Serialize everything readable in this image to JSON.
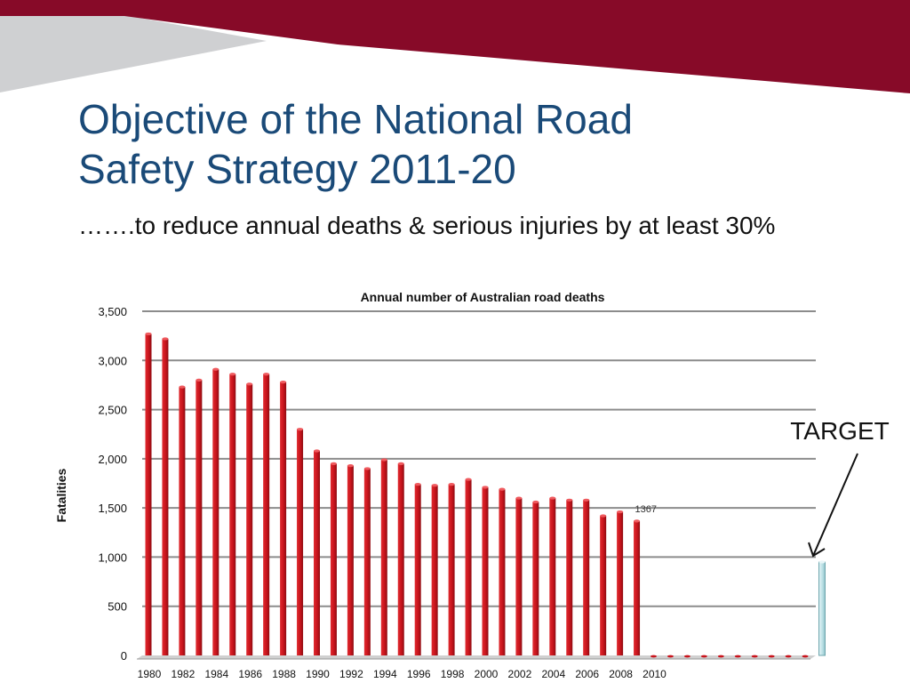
{
  "slide": {
    "title_line1": "Objective of the National Road",
    "title_line2": "Safety Strategy 2011-20",
    "subtitle": "…….to reduce annual deaths & serious injuries by at least 30%"
  },
  "colors": {
    "banner": "#870a28",
    "banner_gray": "#cfd0d2",
    "title": "#1a4a78",
    "bar": "#c8141c",
    "target_bar": "#b9dfe4"
  },
  "chart_data": {
    "type": "bar",
    "title": "Annual number of Australian road deaths",
    "ylabel": "Fatalities",
    "xlabel": "",
    "ylim": [
      0,
      3500
    ],
    "yticks": [
      0,
      500,
      1000,
      1500,
      2000,
      2500,
      3000,
      3500
    ],
    "ytick_labels": [
      "0",
      "500",
      "1,000",
      "1,500",
      "2,000",
      "2,500",
      "3,000",
      "3,500"
    ],
    "categories": [
      "1980",
      "1981",
      "1982",
      "1983",
      "1984",
      "1985",
      "1986",
      "1987",
      "1988",
      "1989",
      "1990",
      "1991",
      "1992",
      "1993",
      "1994",
      "1995",
      "1996",
      "1997",
      "1998",
      "1999",
      "2000",
      "2001",
      "2002",
      "2003",
      "2004",
      "2005",
      "2006",
      "2007",
      "2008",
      "2009",
      "2010",
      "2011",
      "2012",
      "2013",
      "2014",
      "2015",
      "2016",
      "2017",
      "2018",
      "2019",
      "2020"
    ],
    "xtick_labels": [
      "1980",
      "1982",
      "1984",
      "1986",
      "1988",
      "1990",
      "1992",
      "1994",
      "1996",
      "1998",
      "2000",
      "2002",
      "2004",
      "2006",
      "2008",
      "2010"
    ],
    "series": [
      {
        "values": [
          3270,
          3220,
          2730,
          2800,
          2910,
          2860,
          2760,
          2860,
          2780,
          2300,
          2080,
          1950,
          1930,
          1900,
          1990,
          1950,
          1740,
          1730,
          1740,
          1790,
          1710,
          1690,
          1600,
          1560,
          1600,
          1580,
          1580,
          1420,
          1460,
          1367,
          0,
          0,
          0,
          0,
          0,
          0,
          0,
          0,
          0,
          0,
          950
        ]
      }
    ],
    "data_labels": [
      {
        "category": "2009",
        "text": "1367"
      }
    ],
    "target": {
      "category": "2020",
      "value": 950,
      "label": "TARGET"
    },
    "grid": true
  }
}
